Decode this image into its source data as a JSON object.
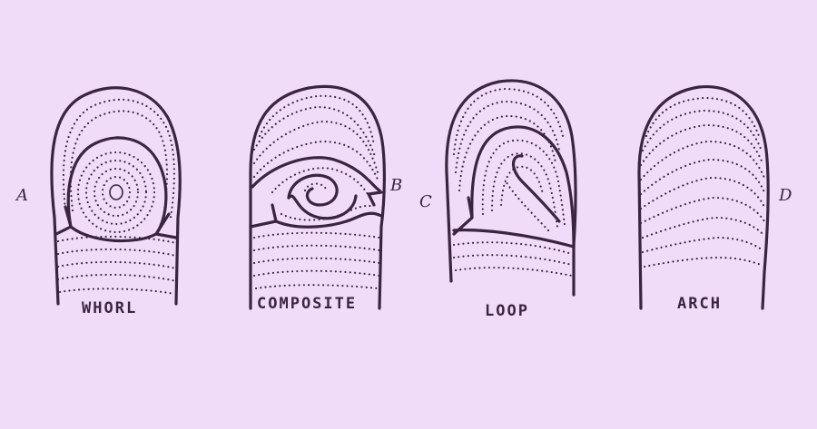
{
  "figures": [
    {
      "letter": "A",
      "caption": "WHORL"
    },
    {
      "letter": "B",
      "caption": "COMPOSITE"
    },
    {
      "letter": "C",
      "caption": "LOOP"
    },
    {
      "letter": "D",
      "caption": "ARCH"
    }
  ],
  "colors": {
    "background": "#f0dcf8",
    "ink": "#3a2440"
  }
}
